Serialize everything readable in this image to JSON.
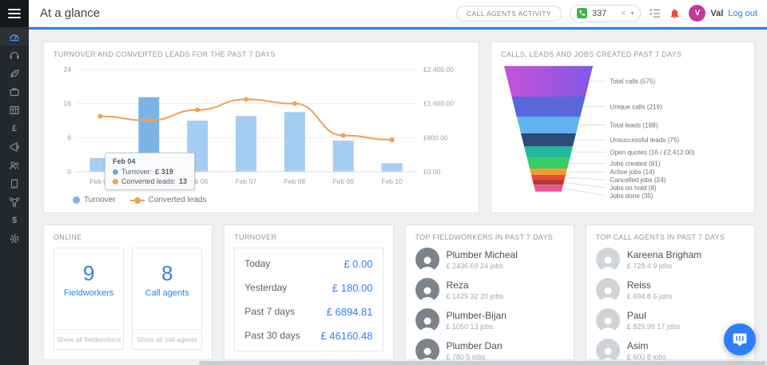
{
  "app": {
    "title": "At a glance"
  },
  "header": {
    "activity_button": "CALL AGENTS ACTIVITY",
    "phone": {
      "value": "337",
      "clear": "×",
      "caret": "▾"
    },
    "user": {
      "initial": "V",
      "name": "Val",
      "logout": "Log out"
    }
  },
  "sidebar": {
    "pound": "£",
    "dollar": "$"
  },
  "chart_data": [
    {
      "type": "bar+line",
      "title": "TURNOVER AND CONVERTED LEADS FOR THE PAST 7 DAYS",
      "categories": [
        "Feb 04",
        "Feb 05",
        "Feb 06",
        "Feb 07",
        "Feb 08",
        "Feb 09",
        "Feb 10"
      ],
      "series": [
        {
          "name": "Turnover",
          "type": "bar",
          "axis": "right",
          "values": [
            319,
            1750,
            1200,
            1310,
            1400,
            730,
            200
          ],
          "color": "#a6cdf2",
          "highlight_color": "#7db4e8",
          "highlight_index": 1
        },
        {
          "name": "Converted leads",
          "type": "line",
          "axis": "left",
          "values": [
            13,
            12,
            14.5,
            17,
            16,
            8.5,
            7.5
          ],
          "color": "#f0a055"
        }
      ],
      "left_axis": {
        "ticks": [
          0,
          8,
          16,
          24
        ],
        "max": 24
      },
      "right_axis": {
        "labels": [
          "£0.00",
          "£800.00",
          "£1,600.00",
          "£2,400.00"
        ],
        "max": 2400
      },
      "tooltip": {
        "date": "Feb 04",
        "rows": [
          {
            "dot": "#6ea8e0",
            "label": "Turnover:",
            "value": "£ 319"
          },
          {
            "dot": "#f0a055",
            "label": "Converted leads:",
            "value": "13"
          }
        ]
      },
      "legend_position": "bottom-left",
      "grid": true
    },
    {
      "type": "funnel",
      "title": "CALLS, LEADS AND JOBS CREATED PAST 7 DAYS",
      "items": [
        {
          "label": "Total calls",
          "value": "575",
          "color": [
            "#c653d8",
            "#8257e5"
          ]
        },
        {
          "label": "Unique calls",
          "value": "219",
          "color": "#5a67d8"
        },
        {
          "label": "Total leads",
          "value": "188",
          "color": "#5fb3f0"
        },
        {
          "label": "Unsuccessful leads",
          "value": "75",
          "color": "#2d4a7a"
        },
        {
          "label": "Open quotes",
          "value": "16 / £2,412.00",
          "color": "#1fb9a0"
        },
        {
          "label": "Jobs created",
          "value": "81",
          "color": "#35cc62"
        },
        {
          "label": "Active jobs",
          "value": "14",
          "color": "#f39c2d"
        },
        {
          "label": "Cancelled jobs",
          "value": "24",
          "color": "#e74c3c"
        },
        {
          "label": "Jobs on hold",
          "value": "8",
          "color": "#b03a2e"
        },
        {
          "label": "Jobs done",
          "value": "35",
          "color": "#e8539a"
        }
      ]
    }
  ],
  "panels": {
    "online": {
      "title": "ONLINE",
      "fieldworkers": {
        "count": "9",
        "label": "Fieldworkers",
        "link": "Show all fieldworkers"
      },
      "call_agents": {
        "count": "8",
        "label": "Call agents",
        "link": "Show all call agents"
      }
    },
    "turnover": {
      "title": "TURNOVER",
      "rows": [
        {
          "label": "Today",
          "value": "£ 0.00"
        },
        {
          "label": "Yesterday",
          "value": "£ 180.00"
        },
        {
          "label": "Past 7 days",
          "value": "£ 6894.81"
        },
        {
          "label": "Past 30 days",
          "value": "£ 46160.48"
        }
      ]
    },
    "top_fieldworkers": {
      "title": "TOP FIELDWORKERS IN PAST 7 DAYS",
      "items": [
        {
          "name": "Plumber Micheal",
          "amount": "£ 2436.69",
          "jobs": "24 jobs"
        },
        {
          "name": "Reza",
          "amount": "£ 1429.32",
          "jobs": "20 jobs"
        },
        {
          "name": "Plumber-Bijan",
          "amount": "£ 1050",
          "jobs": "13 jobs"
        },
        {
          "name": "Plumber Dan",
          "amount": "£ 780",
          "jobs": "5 jobs"
        }
      ]
    },
    "top_call_agents": {
      "title": "TOP CALL AGENTS IN PAST 7 DAYS",
      "items": [
        {
          "name": "Kareena Brigham",
          "amount": "£ 728.4",
          "jobs": "9 jobs"
        },
        {
          "name": "Reiss",
          "amount": "£ 694.8",
          "jobs": "6 jobs"
        },
        {
          "name": "Paul",
          "amount": "£ 829.99",
          "jobs": "17 jobs"
        },
        {
          "name": "Asim",
          "amount": "£ 600",
          "jobs": "8 jobs"
        }
      ]
    }
  }
}
